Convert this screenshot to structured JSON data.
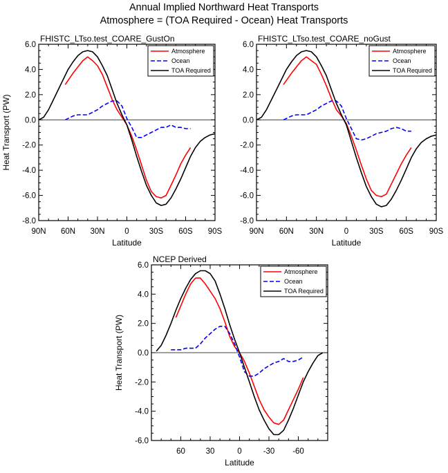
{
  "figure": {
    "title_line1": "Annual Implied Northward Heat Transports",
    "title_line2": "Atmosphere = (TOA Required - Ocean) Heat Transports"
  },
  "chart_data": [
    {
      "type": "line",
      "title": "FHISTC_LTso.test_COARE_GustOn",
      "xlabel": "Latitude",
      "ylabel": "Heat Transport (PW)",
      "xlim": [
        90,
        -90
      ],
      "ylim": [
        -8,
        6
      ],
      "xticks": [
        90,
        60,
        30,
        0,
        -30,
        -60,
        -90
      ],
      "xticklabels": [
        "90N",
        "60N",
        "30N",
        "0",
        "30S",
        "60S",
        "90S"
      ],
      "yticks": [
        6,
        4,
        2,
        0,
        -2,
        -4,
        -6,
        -8
      ],
      "yticklabels": [
        "6.0",
        "4.0",
        "2.0",
        "0.0",
        "-2.0",
        "-4.0",
        "-6.0",
        "-8.0"
      ],
      "legend": "top-right",
      "series": [
        {
          "name": "Atmosphere",
          "color": "#ff0000",
          "dash": "solid",
          "x": [
            63,
            55,
            50,
            45,
            40,
            35,
            30,
            25,
            20,
            15,
            10,
            5,
            0,
            -5,
            -10,
            -15,
            -20,
            -25,
            -30,
            -35,
            -40,
            -45,
            -50,
            -55,
            -60,
            -65
          ],
          "y": [
            2.8,
            3.7,
            4.2,
            4.7,
            5.0,
            4.7,
            4.3,
            3.6,
            2.6,
            1.6,
            0.8,
            0.2,
            -0.4,
            -1.3,
            -2.4,
            -3.6,
            -4.8,
            -5.7,
            -6.1,
            -6.2,
            -6.0,
            -5.2,
            -4.4,
            -3.5,
            -2.8,
            -2.2
          ]
        },
        {
          "name": "Ocean",
          "color": "#0000ff",
          "dash": "dashed",
          "x": [
            63,
            55,
            50,
            45,
            40,
            35,
            30,
            25,
            20,
            15,
            10,
            5,
            0,
            -5,
            -10,
            -15,
            -20,
            -25,
            -30,
            -35,
            -40,
            -45,
            -50,
            -55,
            -60,
            -65
          ],
          "y": [
            0.0,
            0.3,
            0.4,
            0.4,
            0.4,
            0.6,
            0.8,
            1.1,
            1.3,
            1.5,
            1.5,
            1.1,
            0.1,
            -0.6,
            -1.4,
            -1.4,
            -1.2,
            -1.0,
            -0.8,
            -0.6,
            -0.6,
            -0.4,
            -0.6,
            -0.6,
            -0.7,
            -0.7
          ]
        },
        {
          "name": "TOA Required",
          "color": "#000000",
          "dash": "solid",
          "x": [
            90,
            85,
            80,
            75,
            70,
            65,
            60,
            55,
            50,
            45,
            40,
            35,
            30,
            25,
            20,
            15,
            10,
            5,
            0,
            -5,
            -10,
            -15,
            -20,
            -25,
            -30,
            -35,
            -40,
            -45,
            -50,
            -55,
            -60,
            -65,
            -70,
            -75,
            -80,
            -85,
            -90
          ],
          "y": [
            0.0,
            0.2,
            0.8,
            1.6,
            2.4,
            3.2,
            4.0,
            4.6,
            5.1,
            5.4,
            5.5,
            5.4,
            5.0,
            4.3,
            3.5,
            2.4,
            1.3,
            0.4,
            -0.4,
            -1.6,
            -2.9,
            -4.1,
            -5.2,
            -6.0,
            -6.6,
            -6.8,
            -6.7,
            -6.2,
            -5.5,
            -4.7,
            -3.8,
            -2.9,
            -2.2,
            -1.7,
            -1.4,
            -1.2,
            -1.1
          ]
        }
      ]
    },
    {
      "type": "line",
      "title": "FHISTC_LTso.test_COARE_noGust",
      "xlabel": "Latitude",
      "ylabel": "",
      "xlim": [
        90,
        -90
      ],
      "ylim": [
        -8,
        6
      ],
      "xticks": [
        90,
        60,
        30,
        0,
        -30,
        -60,
        -90
      ],
      "xticklabels": [
        "90N",
        "60N",
        "30N",
        "0",
        "30S",
        "60S",
        "90S"
      ],
      "yticks": [
        6,
        4,
        2,
        0,
        -2,
        -4,
        -6,
        -8
      ],
      "yticklabels": [
        "6.0",
        "4.0",
        "2.0",
        "0.0",
        "-2.0",
        "-4.0",
        "-6.0",
        "-8.0"
      ],
      "legend": "top-right",
      "series": [
        {
          "name": "Atmosphere",
          "color": "#ff0000",
          "dash": "solid",
          "x": [
            63,
            55,
            50,
            45,
            40,
            35,
            30,
            25,
            20,
            15,
            10,
            5,
            0,
            -5,
            -10,
            -15,
            -20,
            -25,
            -30,
            -35,
            -40,
            -45,
            -50,
            -55,
            -60,
            -65
          ],
          "y": [
            2.8,
            3.7,
            4.2,
            4.7,
            5.0,
            4.7,
            4.4,
            3.6,
            2.7,
            1.7,
            0.8,
            0.3,
            -0.3,
            -1.3,
            -2.4,
            -3.6,
            -4.7,
            -5.6,
            -6.0,
            -6.1,
            -5.9,
            -5.1,
            -4.3,
            -3.5,
            -2.8,
            -2.2
          ]
        },
        {
          "name": "Ocean",
          "color": "#0000ff",
          "dash": "dashed",
          "x": [
            63,
            55,
            50,
            45,
            40,
            35,
            30,
            25,
            20,
            15,
            10,
            5,
            0,
            -5,
            -10,
            -15,
            -20,
            -25,
            -30,
            -35,
            -40,
            -45,
            -50,
            -55,
            -60,
            -65
          ],
          "y": [
            0.0,
            0.3,
            0.4,
            0.4,
            0.4,
            0.6,
            0.8,
            1.1,
            1.3,
            1.5,
            1.5,
            1.1,
            0.1,
            -0.7,
            -1.5,
            -1.6,
            -1.5,
            -1.3,
            -1.1,
            -1.0,
            -0.9,
            -0.7,
            -0.6,
            -0.7,
            -0.9,
            -0.9
          ]
        },
        {
          "name": "TOA Required",
          "color": "#000000",
          "dash": "solid",
          "x": [
            90,
            85,
            80,
            75,
            70,
            65,
            60,
            55,
            50,
            45,
            40,
            35,
            30,
            25,
            20,
            15,
            10,
            5,
            0,
            -5,
            -10,
            -15,
            -20,
            -25,
            -30,
            -35,
            -40,
            -45,
            -50,
            -55,
            -60,
            -65,
            -70,
            -75,
            -80,
            -85,
            -90
          ],
          "y": [
            0.0,
            0.2,
            0.8,
            1.6,
            2.4,
            3.2,
            4.0,
            4.6,
            5.1,
            5.4,
            5.5,
            5.4,
            5.0,
            4.3,
            3.5,
            2.4,
            1.3,
            0.4,
            -0.4,
            -1.7,
            -3.0,
            -4.2,
            -5.3,
            -6.1,
            -6.7,
            -6.9,
            -6.8,
            -6.3,
            -5.6,
            -4.8,
            -3.9,
            -3.0,
            -2.3,
            -1.8,
            -1.5,
            -1.3,
            -1.2
          ]
        }
      ]
    },
    {
      "type": "line",
      "title": "NCEP Derived",
      "xlabel": "Latitude",
      "ylabel": "Heat Transport (PW)",
      "xlim": [
        90,
        -90
      ],
      "ylim": [
        -6,
        6
      ],
      "xticks": [
        60,
        30,
        0,
        -30,
        -60
      ],
      "xticklabels": [
        "60",
        "30",
        "0",
        "-30",
        "-60"
      ],
      "yticks": [
        6,
        4,
        2,
        0,
        -2,
        -4,
        -6
      ],
      "yticklabels": [
        "6.0",
        "4.0",
        "2.0",
        "0.0",
        "-2.0",
        "-4.0",
        "-6.0"
      ],
      "legend": "top-right",
      "series": [
        {
          "name": "Atmosphere",
          "color": "#ff0000",
          "dash": "solid",
          "x": [
            65,
            60,
            55,
            50,
            45,
            40,
            35,
            30,
            25,
            20,
            15,
            10,
            5,
            0,
            -5,
            -10,
            -15,
            -20,
            -25,
            -30,
            -35,
            -40,
            -45,
            -50,
            -55,
            -60,
            -65
          ],
          "y": [
            2.4,
            3.2,
            4.0,
            4.7,
            5.1,
            5.1,
            4.7,
            4.2,
            3.7,
            3.0,
            2.1,
            1.1,
            0.4,
            0.0,
            -0.6,
            -1.4,
            -2.3,
            -3.2,
            -3.9,
            -4.4,
            -4.8,
            -4.9,
            -4.6,
            -3.9,
            -3.2,
            -2.5,
            -1.7
          ]
        },
        {
          "name": "Ocean",
          "color": "#0000ff",
          "dash": "dashed",
          "x": [
            70,
            65,
            60,
            55,
            50,
            45,
            40,
            35,
            30,
            25,
            20,
            15,
            10,
            5,
            0,
            -5,
            -10,
            -15,
            -20,
            -25,
            -30,
            -35,
            -40,
            -45,
            -50,
            -55,
            -60,
            -65
          ],
          "y": [
            0.2,
            0.2,
            0.2,
            0.3,
            0.3,
            0.3,
            0.6,
            1.0,
            1.3,
            1.6,
            1.8,
            1.8,
            1.3,
            0.6,
            -0.3,
            -1.3,
            -1.6,
            -1.6,
            -1.4,
            -1.1,
            -0.9,
            -0.7,
            -0.6,
            -0.4,
            -0.6,
            -0.6,
            -0.5,
            -0.3
          ]
        },
        {
          "name": "TOA Required",
          "color": "#000000",
          "dash": "solid",
          "x": [
            85,
            80,
            75,
            70,
            65,
            60,
            55,
            50,
            45,
            40,
            35,
            30,
            25,
            20,
            15,
            10,
            5,
            0,
            -5,
            -10,
            -15,
            -20,
            -25,
            -30,
            -35,
            -40,
            -45,
            -50,
            -55,
            -60,
            -65,
            -70,
            -75,
            -80,
            -85
          ],
          "y": [
            0.1,
            0.5,
            1.2,
            2.0,
            2.9,
            3.7,
            4.4,
            5.0,
            5.4,
            5.6,
            5.6,
            5.4,
            4.9,
            4.0,
            3.0,
            1.9,
            0.9,
            0.0,
            -1.0,
            -2.0,
            -3.0,
            -3.9,
            -4.6,
            -5.2,
            -5.6,
            -5.6,
            -5.3,
            -4.6,
            -3.8,
            -2.9,
            -2.0,
            -1.3,
            -0.7,
            -0.2,
            0.0
          ]
        }
      ]
    }
  ]
}
